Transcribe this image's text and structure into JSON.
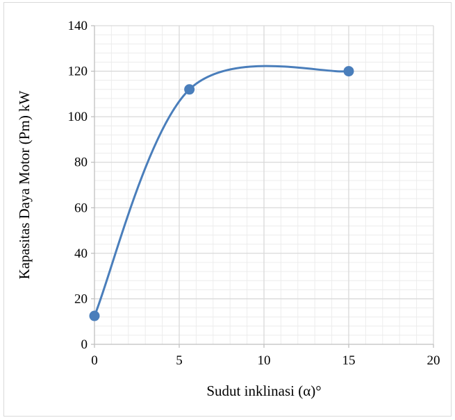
{
  "chart_data": {
    "type": "scatter",
    "title": "",
    "xlabel": "Sudut inklinasi (α)°",
    "ylabel": "Kapasitas Daya Motor (Pm) kW",
    "xlim": [
      0,
      20
    ],
    "ylim": [
      0,
      140
    ],
    "x_major_ticks": [
      0,
      5,
      10,
      15,
      20
    ],
    "x_tick_labels": [
      "0",
      "5",
      "10",
      "15",
      "20"
    ],
    "y_major_ticks": [
      0,
      20,
      40,
      60,
      80,
      100,
      120,
      140
    ],
    "y_tick_labels": [
      "0",
      "20",
      "40",
      "60",
      "80",
      "100",
      "120",
      "140"
    ],
    "x_minor_step": 1,
    "y_minor_step": 4,
    "grid": true,
    "legend": false,
    "line_style": "smooth",
    "series": [
      {
        "x": [
          0,
          5.6,
          15
        ],
        "y": [
          12.5,
          112,
          120
        ]
      }
    ],
    "colors": {
      "series": "#4a7ebb",
      "marker": "#4a7ebb",
      "major_grid": "#d9d9d9",
      "minor_grid": "#ececec",
      "axis": "#bfbfbf",
      "frame": "#d9d9d9"
    }
  }
}
